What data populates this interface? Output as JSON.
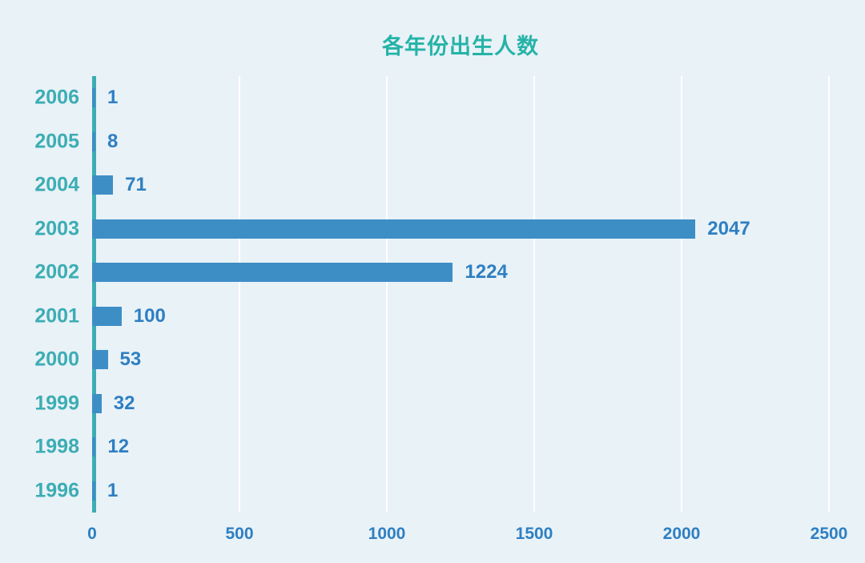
{
  "chart_data": {
    "type": "bar",
    "orientation": "horizontal",
    "title": "各年份出生人数",
    "categories": [
      "2006",
      "2005",
      "2004",
      "2003",
      "2002",
      "2001",
      "2000",
      "1999",
      "1998",
      "1996"
    ],
    "values": [
      1,
      8,
      71,
      2047,
      1224,
      100,
      53,
      32,
      12,
      1
    ],
    "xlim": [
      0,
      2500
    ],
    "x_ticks": [
      0,
      500,
      1000,
      1500,
      2000,
      2500
    ],
    "grid": "vertical-gridlines-on",
    "legend": "none",
    "value_labels": "shown-at-bar-end"
  },
  "style": {
    "background": "#e9f2f7",
    "bar_color": "#3e8ec6",
    "title_color": "#25b3a8",
    "category_label_color": "#3cadb4",
    "axis_line_color": "#3cadb4",
    "value_label_color": "#2e7fc2",
    "gridline_color": "#ffffff"
  }
}
